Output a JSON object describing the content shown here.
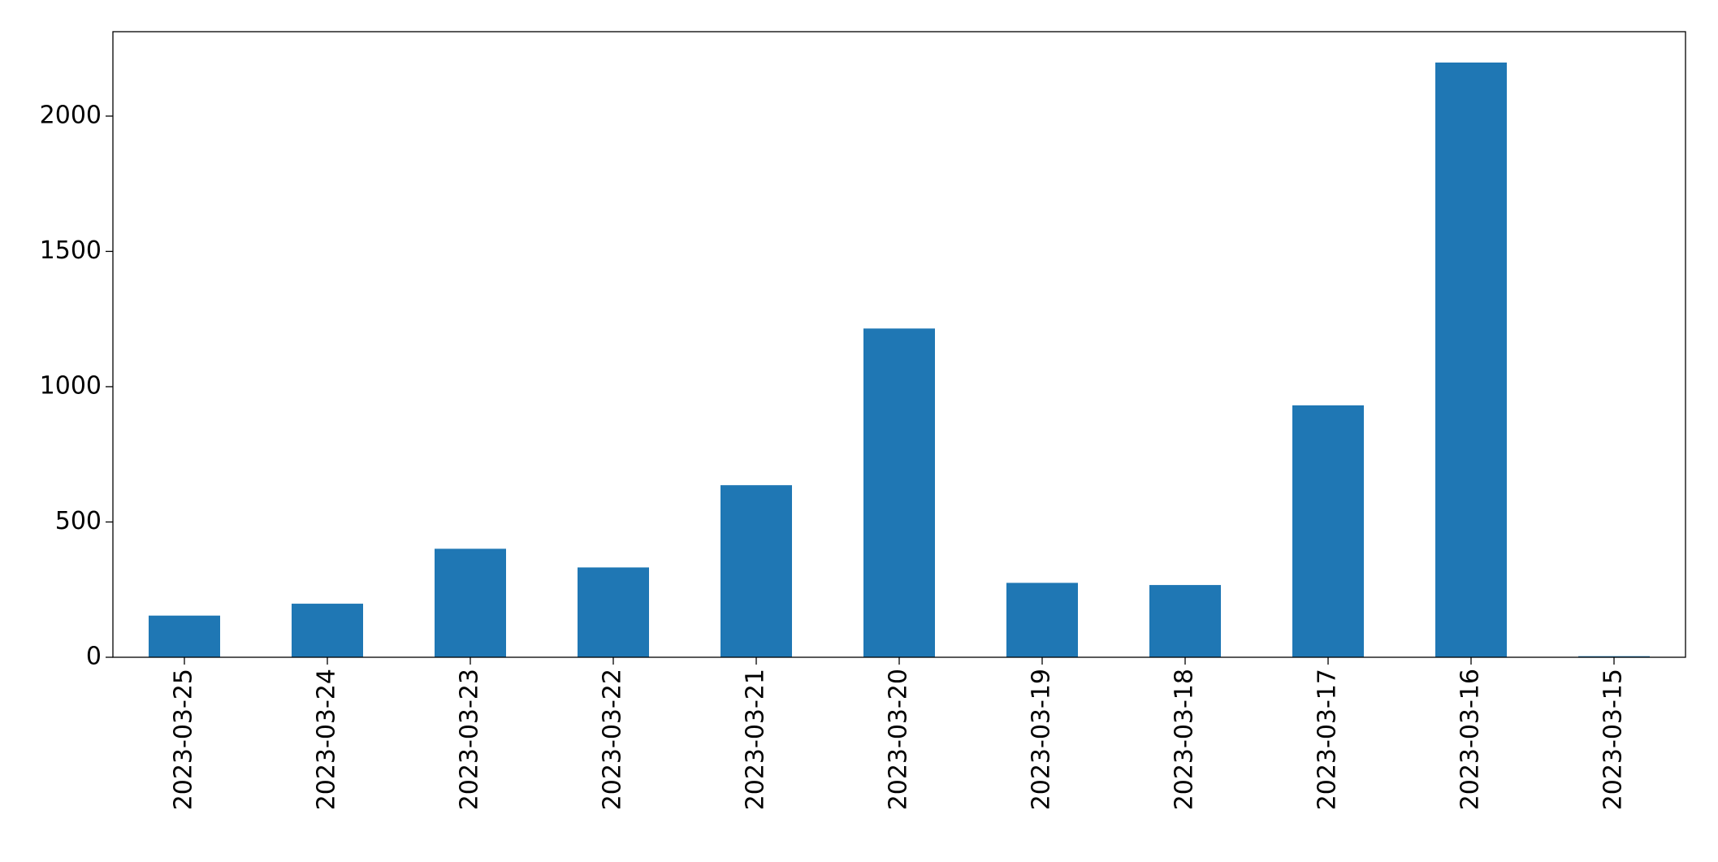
{
  "chart_data": {
    "type": "bar",
    "categories": [
      "2023-03-25",
      "2023-03-24",
      "2023-03-23",
      "2023-03-22",
      "2023-03-21",
      "2023-03-20",
      "2023-03-19",
      "2023-03-18",
      "2023-03-17",
      "2023-03-16",
      "2023-03-15"
    ],
    "values": [
      154,
      198,
      401,
      332,
      636,
      1215,
      275,
      267,
      931,
      2198,
      4
    ],
    "color": "#1f77b4",
    "ylim": [
      0,
      2312
    ],
    "yticks": [
      0,
      500,
      1000,
      1500,
      2000
    ],
    "grid": false
  }
}
